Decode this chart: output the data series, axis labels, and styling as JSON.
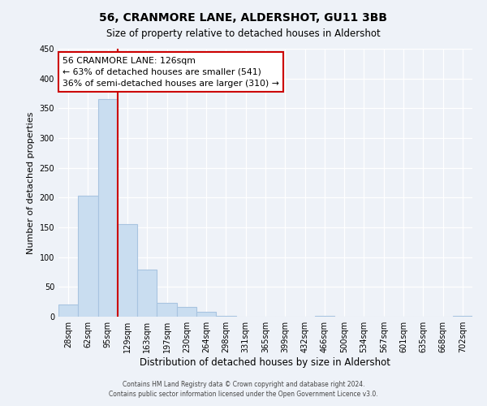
{
  "title": "56, CRANMORE LANE, ALDERSHOT, GU11 3BB",
  "subtitle": "Size of property relative to detached houses in Aldershot",
  "xlabel": "Distribution of detached houses by size in Aldershot",
  "ylabel": "Number of detached properties",
  "bin_labels": [
    "28sqm",
    "62sqm",
    "95sqm",
    "129sqm",
    "163sqm",
    "197sqm",
    "230sqm",
    "264sqm",
    "298sqm",
    "331sqm",
    "365sqm",
    "399sqm",
    "432sqm",
    "466sqm",
    "500sqm",
    "534sqm",
    "567sqm",
    "601sqm",
    "635sqm",
    "668sqm",
    "702sqm"
  ],
  "bar_values": [
    20,
    203,
    366,
    155,
    79,
    23,
    16,
    8,
    2,
    0,
    0,
    0,
    0,
    2,
    0,
    0,
    0,
    0,
    0,
    0,
    2
  ],
  "bar_color": "#c9ddf0",
  "bar_edgecolor": "#a8c4e0",
  "property_line_color": "#cc0000",
  "annotation_title": "56 CRANMORE LANE: 126sqm",
  "annotation_line1": "← 63% of detached houses are smaller (541)",
  "annotation_line2": "36% of semi-detached houses are larger (310) →",
  "annotation_box_color": "#cc0000",
  "ylim": [
    0,
    450
  ],
  "yticks": [
    0,
    50,
    100,
    150,
    200,
    250,
    300,
    350,
    400,
    450
  ],
  "footer1": "Contains HM Land Registry data © Crown copyright and database right 2024.",
  "footer2": "Contains public sector information licensed under the Open Government Licence v3.0.",
  "bg_color": "#eef2f8",
  "plot_bg_color": "#eef2f8"
}
